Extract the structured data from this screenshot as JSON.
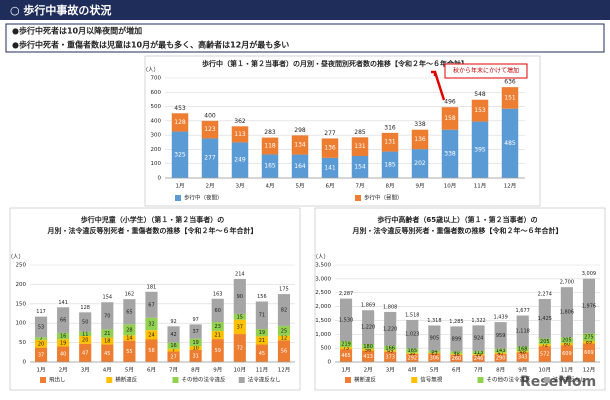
{
  "header": {
    "title": "○ 歩行中事故の状況"
  },
  "bullets": [
    "●歩行中死者は10月以降夜間が増加",
    "●歩行中死者・重傷者数は児童は10月が最も多く、高齢者は12月が最も多い"
  ],
  "watermark": "ReseMom",
  "chart_data": [
    {
      "type": "bar",
      "stacked": true,
      "title": [
        "歩行中（第１・第２当事者）の月別・昼夜間別死者数の推移【令和２年～６年合計】"
      ],
      "y_unit": "（人）",
      "categories": [
        "1月",
        "2月",
        "3月",
        "4月",
        "5月",
        "6月",
        "7月",
        "8月",
        "9月",
        "10月",
        "11月",
        "12月"
      ],
      "series": [
        {
          "name": "歩行中（夜間）",
          "color": "#5b9bd5",
          "values": [
            325,
            277,
            249,
            165,
            164,
            141,
            154,
            185,
            202,
            338,
            395,
            485
          ]
        },
        {
          "name": "歩行中（昼間）",
          "color": "#ed7d31",
          "values": [
            128,
            123,
            113,
            118,
            134,
            136,
            131,
            131,
            136,
            158,
            153,
            151
          ]
        }
      ],
      "totals": [
        453,
        400,
        362,
        283,
        298,
        277,
        285,
        316,
        338,
        496,
        548,
        636
      ],
      "ylim": [
        0,
        700
      ],
      "yticks": [
        0,
        100,
        200,
        300,
        400,
        500,
        600,
        700
      ],
      "grid": true,
      "annotation": "秋から年末にかけて増加"
    },
    {
      "type": "bar",
      "stacked": true,
      "title": [
        "歩行中児童（小学生）（第１・第２当事者）の",
        "月別・法令違反等別死者・重傷者数の推移【令和２年～６年合計】"
      ],
      "y_unit": "（人）",
      "categories": [
        "1月",
        "2月",
        "3月",
        "4月",
        "5月",
        "6月",
        "7月",
        "8月",
        "9月",
        "10月",
        "11月",
        "12月"
      ],
      "series": [
        {
          "name": "飛出し",
          "color": "#ed7d31",
          "values": [
            37,
            40,
            47,
            45,
            55,
            58,
            27,
            31,
            59,
            72,
            45,
            56
          ]
        },
        {
          "name": "横断違反",
          "color": "#ffc000",
          "values": [
            20,
            19,
            20,
            18,
            14,
            24,
            7,
            10,
            21,
            37,
            21,
            12
          ]
        },
        {
          "name": "その他の法令違反",
          "color": "#92d050",
          "values": [
            7,
            16,
            11,
            21,
            28,
            32,
            16,
            19,
            23,
            15,
            19,
            25
          ]
        },
        {
          "name": "法令違反なし",
          "color": "#a5a5a5",
          "values": [
            53,
            66,
            50,
            70,
            65,
            67,
            42,
            37,
            60,
            90,
            71,
            82
          ]
        }
      ],
      "totals": [
        117,
        141,
        128,
        154,
        162,
        181,
        92,
        97,
        163,
        214,
        156,
        175
      ],
      "ylim": [
        0,
        250
      ],
      "yticks": [
        0,
        50,
        100,
        150,
        200,
        250
      ],
      "grid": true
    },
    {
      "type": "bar",
      "stacked": true,
      "title": [
        "歩行中高齢者（65歳以上）（第１・第２当事者）の",
        "月別・法令違反等別死者・重傷者数の推移【令和２年～６年合計】"
      ],
      "y_unit": "（人）",
      "categories": [
        "1月",
        "2月",
        "3月",
        "4月",
        "5月",
        "6月",
        "7月",
        "8月",
        "9月",
        "10月",
        "11月",
        "12月"
      ],
      "series": [
        {
          "name": "横断違反",
          "color": "#ed7d31",
          "values": [
            465,
            413,
            373,
            292,
            306,
            260,
            246,
            290,
            343,
            572,
            609,
            669
          ]
        },
        {
          "name": "信号無視",
          "color": "#ffc000",
          "values": [
            73,
            56,
            49,
            38,
            23,
            36,
            39,
            47,
            48,
            72,
            80,
            89
          ]
        },
        {
          "name": "その他の法令違反",
          "color": "#92d050",
          "values": [
            219,
            180,
            166,
            165,
            84,
            90,
            113,
            143,
            168,
            205,
            205,
            275
          ]
        },
        {
          "name": "法令違反なし",
          "color": "#a5a5a5",
          "values": [
            1530,
            1220,
            1220,
            1023,
            905,
            899,
            924,
            959,
            1118,
            1425,
            1806,
            1976
          ],
          "value_labels": [
            "1,530",
            "1,220",
            "1,220",
            "1,023",
            "905",
            "899",
            "924",
            "959",
            "1,118",
            "1,425",
            "1,806",
            "1,976"
          ]
        }
      ],
      "totals": [
        2287,
        1869,
        1808,
        1518,
        1318,
        1285,
        1322,
        1439,
        1677,
        2274,
        2700,
        3009
      ],
      "total_labels": [
        "2,287",
        "1,869",
        "1,808",
        "1,518",
        "1,318",
        "1,285",
        "1,322",
        "1,439",
        "1,677",
        "2,274",
        "2,700",
        "3,009"
      ],
      "ylim": [
        0,
        3500
      ],
      "yticks": [
        0,
        500,
        {
          "value": 1000,
          "label": "1,000"
        },
        {
          "value": 1500,
          "label": "1,500"
        },
        {
          "value": 2000,
          "label": "2,000"
        },
        {
          "value": 2500,
          "label": "2,500"
        },
        {
          "value": 3000,
          "label": "3,000"
        },
        {
          "value": 3500,
          "label": "3,500"
        }
      ],
      "grid": true
    }
  ]
}
